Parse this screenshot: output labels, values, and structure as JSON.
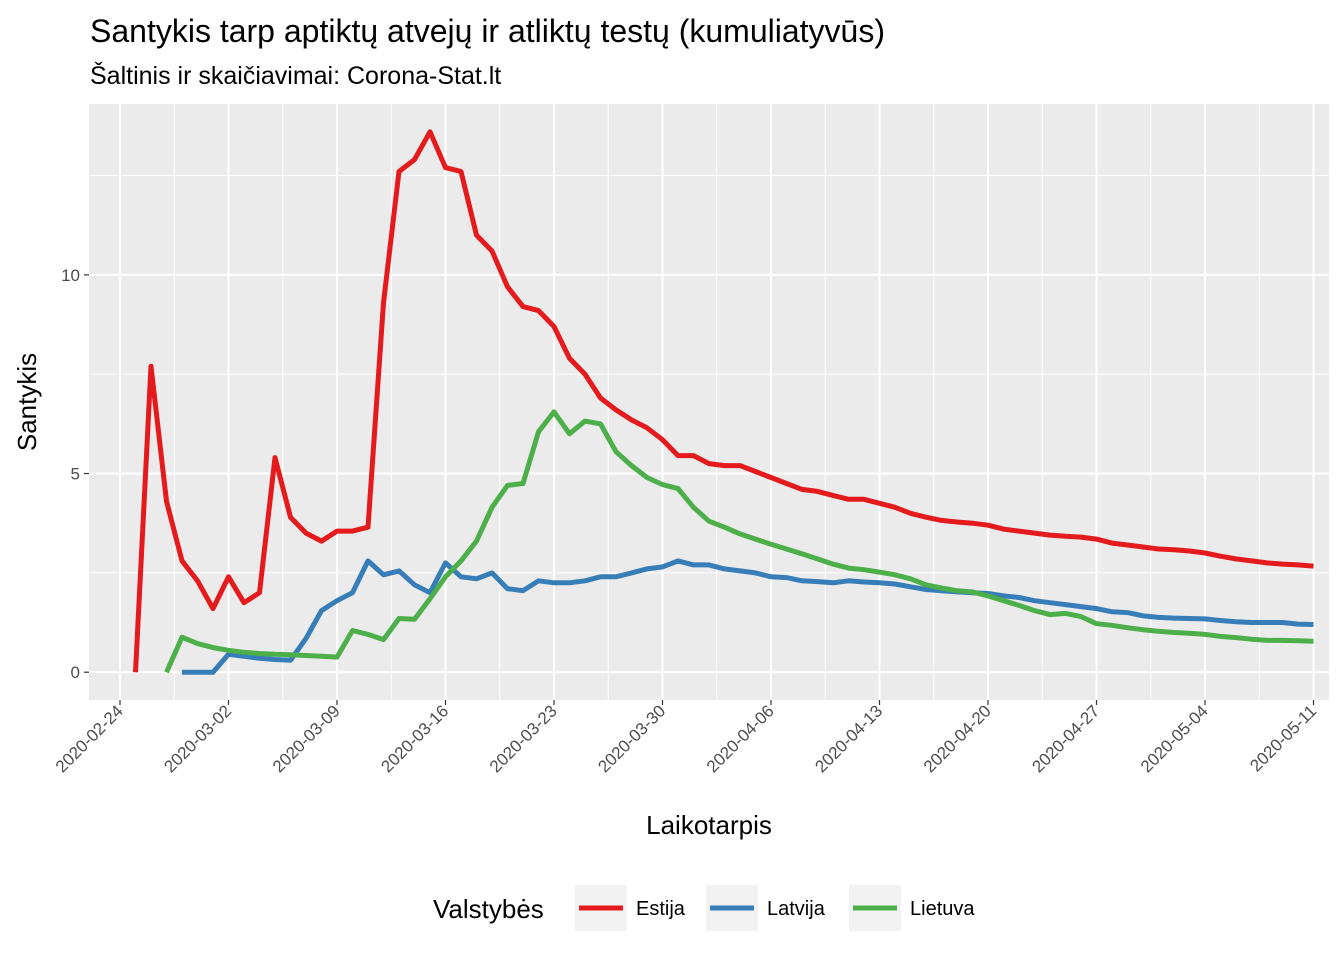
{
  "chart_data": {
    "type": "line",
    "title": "Santykis tarp aptiktų atvejų ir atliktų testų (kumuliatyvūs)",
    "subtitle": "Šaltinis ir skaičiavimai: Corona-Stat.lt",
    "xlabel": "Laikotarpis",
    "ylabel": "Santykis",
    "x_type": "date",
    "xlim": [
      "2020-02-22",
      "2020-05-12"
    ],
    "ylim": [
      -0.7,
      14.3
    ],
    "x_ticks": [
      "2020-02-24",
      "2020-03-02",
      "2020-03-09",
      "2020-03-16",
      "2020-03-23",
      "2020-03-30",
      "2020-04-06",
      "2020-04-13",
      "2020-04-20",
      "2020-04-27",
      "2020-05-04",
      "2020-05-11"
    ],
    "y_ticks": [
      0,
      5,
      10
    ],
    "y_tick_labels": [
      "0",
      "5",
      "10"
    ],
    "grid": true,
    "legend": {
      "title": "Valstybės",
      "position": "bottom"
    },
    "series": [
      {
        "name": "Estija",
        "color": "#e41a1c",
        "points": [
          [
            "2020-02-25",
            0.0
          ],
          [
            "2020-02-26",
            7.7
          ],
          [
            "2020-02-27",
            4.3
          ],
          [
            "2020-02-28",
            2.8
          ],
          [
            "2020-02-29",
            2.3
          ],
          [
            "2020-03-01",
            1.6
          ],
          [
            "2020-03-02",
            2.4
          ],
          [
            "2020-03-03",
            1.75
          ],
          [
            "2020-03-04",
            2.0
          ],
          [
            "2020-03-05",
            5.4
          ],
          [
            "2020-03-06",
            3.9
          ],
          [
            "2020-03-07",
            3.5
          ],
          [
            "2020-03-08",
            3.3
          ],
          [
            "2020-03-09",
            3.55
          ],
          [
            "2020-03-10",
            3.55
          ],
          [
            "2020-03-11",
            3.65
          ],
          [
            "2020-03-12",
            9.3
          ],
          [
            "2020-03-13",
            12.6
          ],
          [
            "2020-03-14",
            12.9
          ],
          [
            "2020-03-15",
            13.6
          ],
          [
            "2020-03-16",
            12.7
          ],
          [
            "2020-03-17",
            12.6
          ],
          [
            "2020-03-18",
            11.0
          ],
          [
            "2020-03-19",
            10.6
          ],
          [
            "2020-03-20",
            9.7
          ],
          [
            "2020-03-21",
            9.2
          ],
          [
            "2020-03-22",
            9.1
          ],
          [
            "2020-03-23",
            8.7
          ],
          [
            "2020-03-24",
            7.9
          ],
          [
            "2020-03-25",
            7.5
          ],
          [
            "2020-03-26",
            6.9
          ],
          [
            "2020-03-27",
            6.6
          ],
          [
            "2020-03-28",
            6.35
          ],
          [
            "2020-03-29",
            6.15
          ],
          [
            "2020-03-30",
            5.85
          ],
          [
            "2020-03-31",
            5.45
          ],
          [
            "2020-04-01",
            5.45
          ],
          [
            "2020-04-02",
            5.25
          ],
          [
            "2020-04-03",
            5.2
          ],
          [
            "2020-04-04",
            5.2
          ],
          [
            "2020-04-05",
            5.05
          ],
          [
            "2020-04-06",
            4.9
          ],
          [
            "2020-04-07",
            4.75
          ],
          [
            "2020-04-08",
            4.6
          ],
          [
            "2020-04-09",
            4.55
          ],
          [
            "2020-04-10",
            4.45
          ],
          [
            "2020-04-11",
            4.35
          ],
          [
            "2020-04-12",
            4.35
          ],
          [
            "2020-04-13",
            4.25
          ],
          [
            "2020-04-14",
            4.15
          ],
          [
            "2020-04-15",
            4.0
          ],
          [
            "2020-04-16",
            3.9
          ],
          [
            "2020-04-17",
            3.82
          ],
          [
            "2020-04-18",
            3.78
          ],
          [
            "2020-04-19",
            3.75
          ],
          [
            "2020-04-20",
            3.7
          ],
          [
            "2020-04-21",
            3.6
          ],
          [
            "2020-04-22",
            3.55
          ],
          [
            "2020-04-23",
            3.5
          ],
          [
            "2020-04-24",
            3.45
          ],
          [
            "2020-04-25",
            3.42
          ],
          [
            "2020-04-26",
            3.4
          ],
          [
            "2020-04-27",
            3.35
          ],
          [
            "2020-04-28",
            3.25
          ],
          [
            "2020-04-29",
            3.2
          ],
          [
            "2020-04-30",
            3.15
          ],
          [
            "2020-05-01",
            3.1
          ],
          [
            "2020-05-02",
            3.08
          ],
          [
            "2020-05-03",
            3.05
          ],
          [
            "2020-05-04",
            3.0
          ],
          [
            "2020-05-05",
            2.92
          ],
          [
            "2020-05-06",
            2.85
          ],
          [
            "2020-05-07",
            2.8
          ],
          [
            "2020-05-08",
            2.75
          ],
          [
            "2020-05-09",
            2.72
          ],
          [
            "2020-05-10",
            2.7
          ],
          [
            "2020-05-11",
            2.67
          ]
        ]
      },
      {
        "name": "Latvija",
        "color": "#377eb8",
        "points": [
          [
            "2020-02-28",
            0.0
          ],
          [
            "2020-02-29",
            0.0
          ],
          [
            "2020-03-01",
            0.0
          ],
          [
            "2020-03-02",
            0.45
          ],
          [
            "2020-03-03",
            0.4
          ],
          [
            "2020-03-04",
            0.35
          ],
          [
            "2020-03-05",
            0.32
          ],
          [
            "2020-03-06",
            0.3
          ],
          [
            "2020-03-07",
            0.85
          ],
          [
            "2020-03-08",
            1.55
          ],
          [
            "2020-03-09",
            1.8
          ],
          [
            "2020-03-10",
            2.0
          ],
          [
            "2020-03-11",
            2.8
          ],
          [
            "2020-03-12",
            2.45
          ],
          [
            "2020-03-13",
            2.55
          ],
          [
            "2020-03-14",
            2.2
          ],
          [
            "2020-03-15",
            2.0
          ],
          [
            "2020-03-16",
            2.75
          ],
          [
            "2020-03-17",
            2.4
          ],
          [
            "2020-03-18",
            2.35
          ],
          [
            "2020-03-19",
            2.5
          ],
          [
            "2020-03-20",
            2.1
          ],
          [
            "2020-03-21",
            2.05
          ],
          [
            "2020-03-22",
            2.3
          ],
          [
            "2020-03-23",
            2.25
          ],
          [
            "2020-03-24",
            2.25
          ],
          [
            "2020-03-25",
            2.3
          ],
          [
            "2020-03-26",
            2.4
          ],
          [
            "2020-03-27",
            2.4
          ],
          [
            "2020-03-28",
            2.5
          ],
          [
            "2020-03-29",
            2.6
          ],
          [
            "2020-03-30",
            2.65
          ],
          [
            "2020-03-31",
            2.8
          ],
          [
            "2020-04-01",
            2.7
          ],
          [
            "2020-04-02",
            2.7
          ],
          [
            "2020-04-03",
            2.6
          ],
          [
            "2020-04-04",
            2.55
          ],
          [
            "2020-04-05",
            2.5
          ],
          [
            "2020-04-06",
            2.4
          ],
          [
            "2020-04-07",
            2.38
          ],
          [
            "2020-04-08",
            2.3
          ],
          [
            "2020-04-09",
            2.28
          ],
          [
            "2020-04-10",
            2.25
          ],
          [
            "2020-04-11",
            2.3
          ],
          [
            "2020-04-12",
            2.27
          ],
          [
            "2020-04-13",
            2.25
          ],
          [
            "2020-04-14",
            2.22
          ],
          [
            "2020-04-15",
            2.15
          ],
          [
            "2020-04-16",
            2.08
          ],
          [
            "2020-04-17",
            2.05
          ],
          [
            "2020-04-18",
            2.02
          ],
          [
            "2020-04-19",
            2.0
          ],
          [
            "2020-04-20",
            1.98
          ],
          [
            "2020-04-21",
            1.92
          ],
          [
            "2020-04-22",
            1.88
          ],
          [
            "2020-04-23",
            1.8
          ],
          [
            "2020-04-24",
            1.75
          ],
          [
            "2020-04-25",
            1.7
          ],
          [
            "2020-04-26",
            1.65
          ],
          [
            "2020-04-27",
            1.6
          ],
          [
            "2020-04-28",
            1.52
          ],
          [
            "2020-04-29",
            1.5
          ],
          [
            "2020-04-30",
            1.42
          ],
          [
            "2020-05-01",
            1.38
          ],
          [
            "2020-05-02",
            1.36
          ],
          [
            "2020-05-03",
            1.35
          ],
          [
            "2020-05-04",
            1.34
          ],
          [
            "2020-05-05",
            1.3
          ],
          [
            "2020-05-06",
            1.27
          ],
          [
            "2020-05-07",
            1.25
          ],
          [
            "2020-05-08",
            1.25
          ],
          [
            "2020-05-09",
            1.25
          ],
          [
            "2020-05-10",
            1.21
          ],
          [
            "2020-05-11",
            1.2
          ]
        ]
      },
      {
        "name": "Lietuva",
        "color": "#4daf4a",
        "points": [
          [
            "2020-02-27",
            0.0
          ],
          [
            "2020-02-28",
            0.88
          ],
          [
            "2020-02-29",
            0.72
          ],
          [
            "2020-03-01",
            0.62
          ],
          [
            "2020-03-02",
            0.55
          ],
          [
            "2020-03-03",
            0.5
          ],
          [
            "2020-03-04",
            0.47
          ],
          [
            "2020-03-05",
            0.45
          ],
          [
            "2020-03-06",
            0.44
          ],
          [
            "2020-03-07",
            0.42
          ],
          [
            "2020-03-08",
            0.4
          ],
          [
            "2020-03-09",
            0.38
          ],
          [
            "2020-03-10",
            1.05
          ],
          [
            "2020-03-11",
            0.95
          ],
          [
            "2020-03-12",
            0.82
          ],
          [
            "2020-03-13",
            1.35
          ],
          [
            "2020-03-14",
            1.33
          ],
          [
            "2020-03-15",
            1.85
          ],
          [
            "2020-03-16",
            2.4
          ],
          [
            "2020-03-17",
            2.8
          ],
          [
            "2020-03-18",
            3.3
          ],
          [
            "2020-03-19",
            4.15
          ],
          [
            "2020-03-20",
            4.7
          ],
          [
            "2020-03-21",
            4.75
          ],
          [
            "2020-03-22",
            6.05
          ],
          [
            "2020-03-23",
            6.55
          ],
          [
            "2020-03-24",
            6.0
          ],
          [
            "2020-03-25",
            6.32
          ],
          [
            "2020-03-26",
            6.25
          ],
          [
            "2020-03-27",
            5.55
          ],
          [
            "2020-03-28",
            5.2
          ],
          [
            "2020-03-29",
            4.9
          ],
          [
            "2020-03-30",
            4.72
          ],
          [
            "2020-03-31",
            4.62
          ],
          [
            "2020-04-01",
            4.15
          ],
          [
            "2020-04-02",
            3.8
          ],
          [
            "2020-04-03",
            3.65
          ],
          [
            "2020-04-04",
            3.48
          ],
          [
            "2020-04-05",
            3.35
          ],
          [
            "2020-04-06",
            3.22
          ],
          [
            "2020-04-07",
            3.1
          ],
          [
            "2020-04-08",
            2.98
          ],
          [
            "2020-04-09",
            2.85
          ],
          [
            "2020-04-10",
            2.72
          ],
          [
            "2020-04-11",
            2.62
          ],
          [
            "2020-04-12",
            2.58
          ],
          [
            "2020-04-13",
            2.52
          ],
          [
            "2020-04-14",
            2.45
          ],
          [
            "2020-04-15",
            2.35
          ],
          [
            "2020-04-16",
            2.2
          ],
          [
            "2020-04-17",
            2.12
          ],
          [
            "2020-04-18",
            2.05
          ],
          [
            "2020-04-19",
            2.02
          ],
          [
            "2020-04-20",
            1.92
          ],
          [
            "2020-04-21",
            1.8
          ],
          [
            "2020-04-22",
            1.68
          ],
          [
            "2020-04-23",
            1.55
          ],
          [
            "2020-04-24",
            1.45
          ],
          [
            "2020-04-25",
            1.48
          ],
          [
            "2020-04-26",
            1.4
          ],
          [
            "2020-04-27",
            1.22
          ],
          [
            "2020-04-28",
            1.18
          ],
          [
            "2020-04-29",
            1.12
          ],
          [
            "2020-04-30",
            1.07
          ],
          [
            "2020-05-01",
            1.03
          ],
          [
            "2020-05-02",
            1.0
          ],
          [
            "2020-05-03",
            0.98
          ],
          [
            "2020-05-04",
            0.95
          ],
          [
            "2020-05-05",
            0.9
          ],
          [
            "2020-05-06",
            0.87
          ],
          [
            "2020-05-07",
            0.83
          ],
          [
            "2020-05-08",
            0.8
          ],
          [
            "2020-05-09",
            0.8
          ],
          [
            "2020-05-10",
            0.79
          ],
          [
            "2020-05-11",
            0.78
          ]
        ]
      }
    ]
  }
}
